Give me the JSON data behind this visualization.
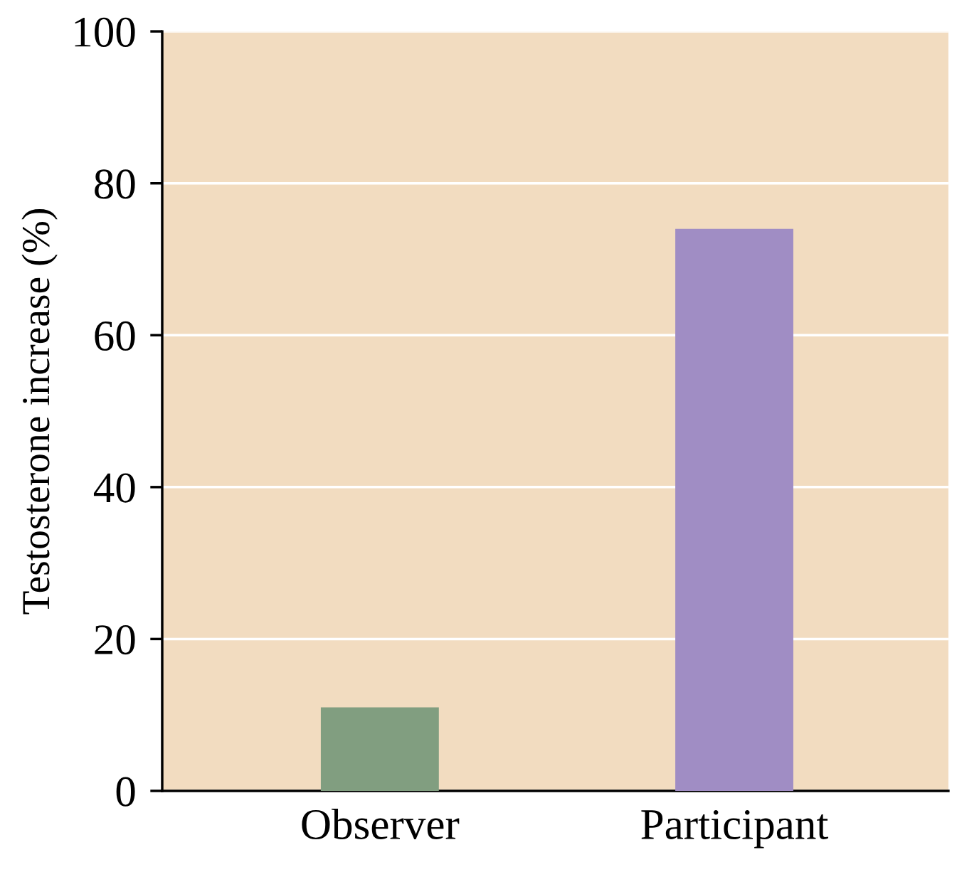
{
  "chart_data": {
    "type": "bar",
    "ylabel": "Testosterone increase (%)",
    "categories": [
      "Observer",
      "Participant"
    ],
    "values": [
      11,
      74
    ],
    "colors": [
      "#819e80",
      "#a08dc4"
    ],
    "ylim": [
      0,
      100
    ],
    "yticks": [
      0,
      20,
      40,
      60,
      80,
      100
    ],
    "grid": "y"
  }
}
